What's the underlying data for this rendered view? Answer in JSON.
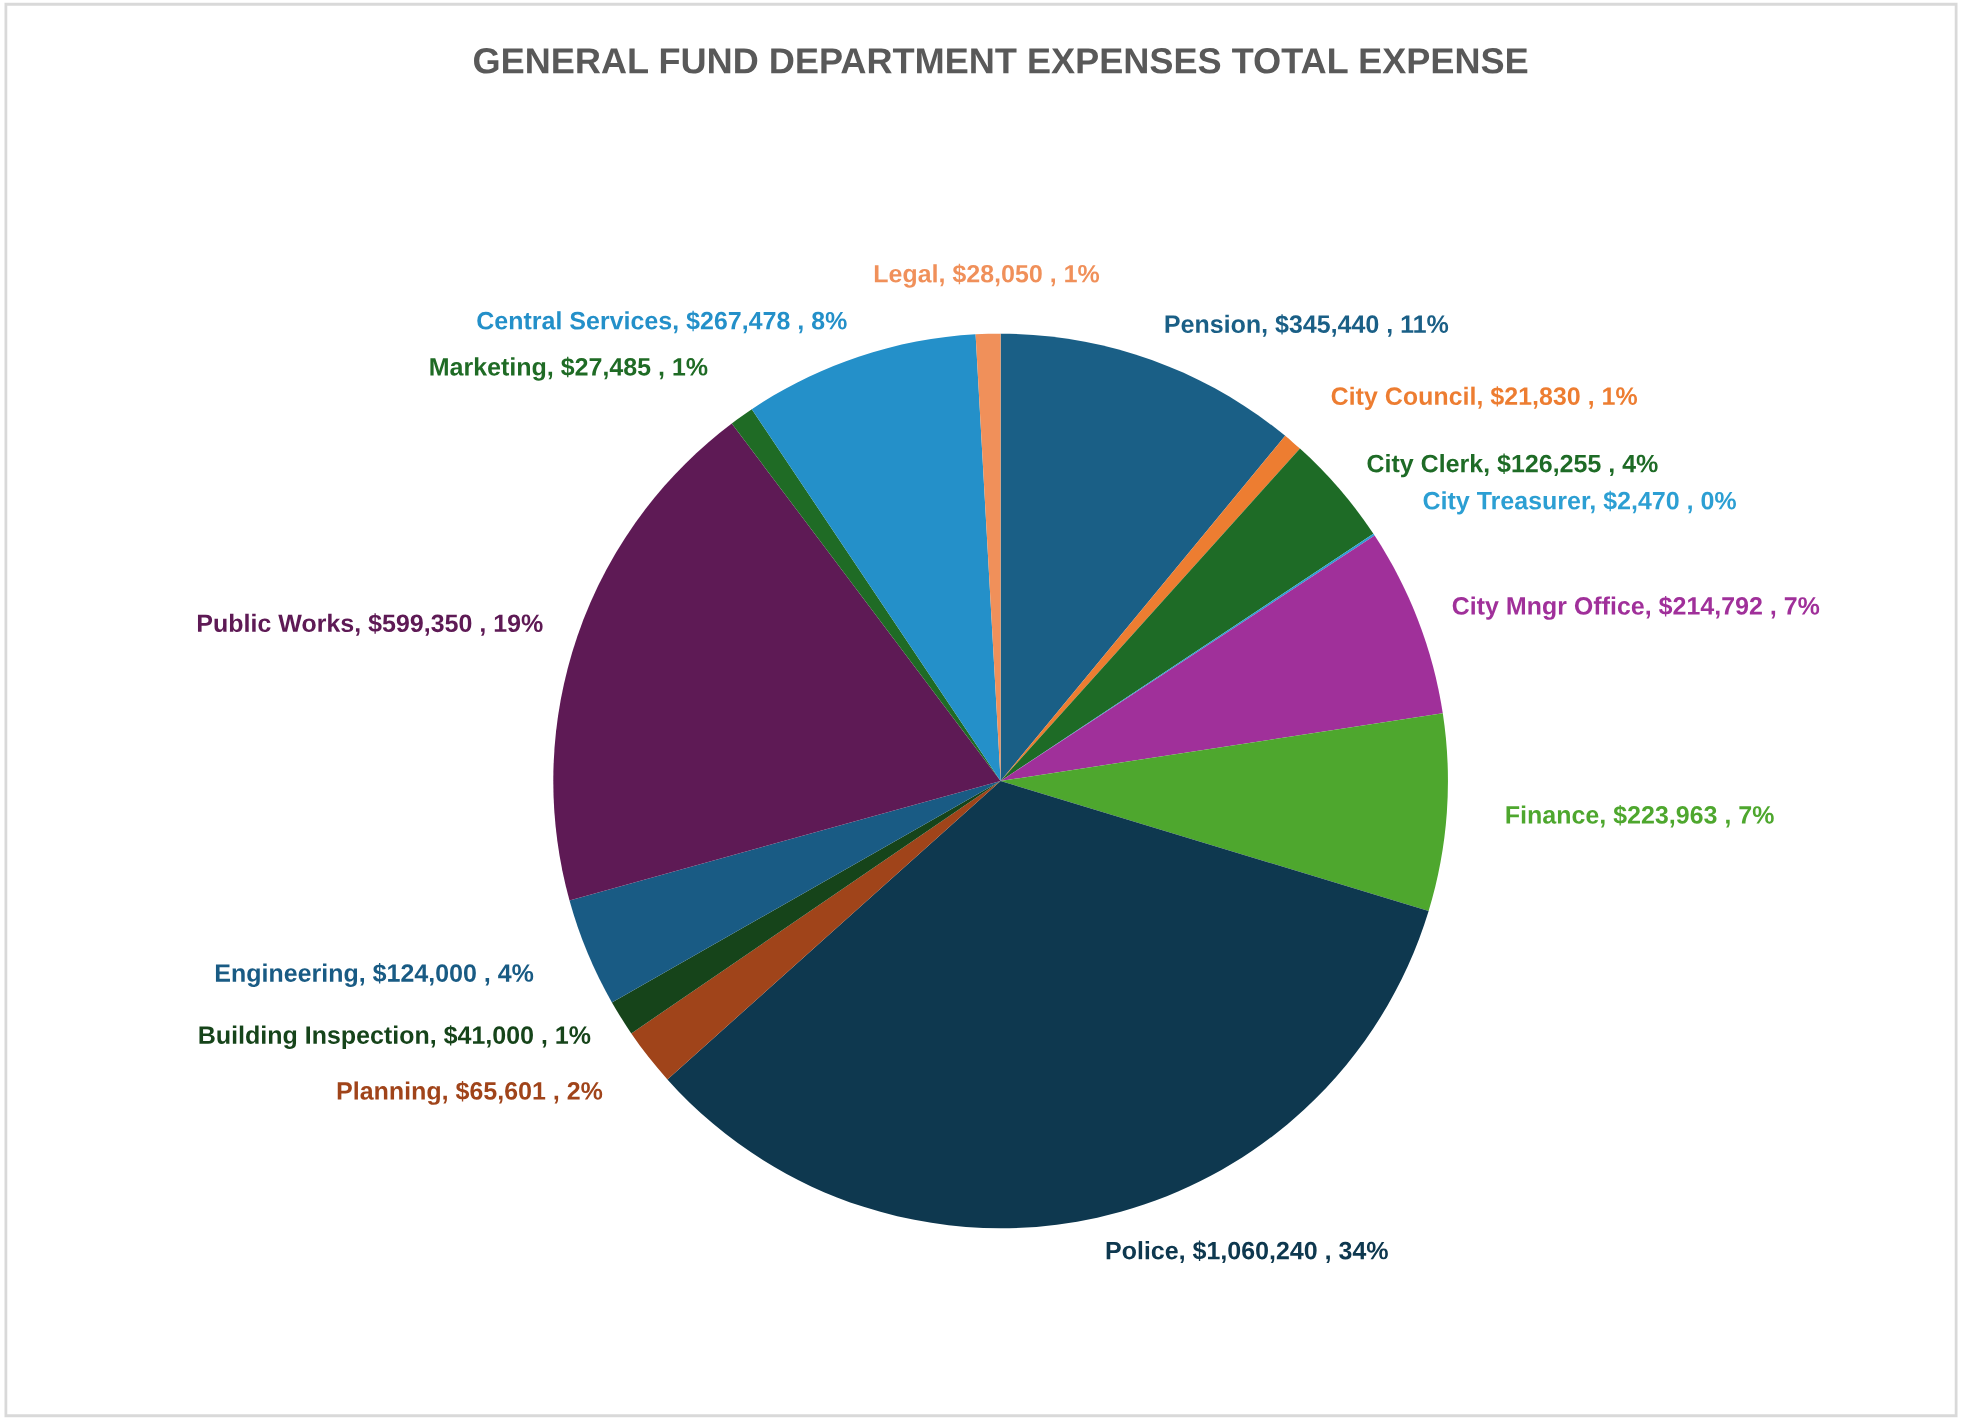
{
  "chart_data": {
    "type": "pie",
    "title": "GENERAL FUND DEPARTMENT EXPENSES TOTAL EXPENSE",
    "categories": [
      "Pension",
      "City Council",
      "City Clerk",
      "City Treasurer",
      "City Mngr Office",
      "Finance",
      "Police",
      "Planning",
      "Building Inspection",
      "Engineering",
      "Public Works",
      "Marketing",
      "Central Services",
      "Legal"
    ],
    "values": [
      345440,
      21830,
      126255,
      2470,
      214792,
      223963,
      1060240,
      65601,
      41000,
      124000,
      599350,
      27485,
      267478,
      28050
    ],
    "value_labels": [
      "$345,440 , 11%",
      "$21,830 , 1%",
      "$126,255 , 4%",
      "$2,470 , 0%",
      "$214,792 , 7%",
      "$223,963 , 7%",
      "$1,060,240 , 34%",
      "$65,601 , 2%",
      "$41,000 , 1%",
      "$124,000 , 4%",
      "$599,350 , 19%",
      "$27,485 , 1%",
      "$267,478 , 8%",
      "$28,050 , 1%"
    ],
    "colors": [
      "#1a5f86",
      "#ed7d31",
      "#1e6b26",
      "#2c9fd3",
      "#a0309a",
      "#4ea72e",
      "#0e384f",
      "#a0441a",
      "#16441a",
      "#195b84",
      "#5e1a55",
      "#1f6b25",
      "#2490c9",
      "#f0905a"
    ],
    "legend": false
  }
}
